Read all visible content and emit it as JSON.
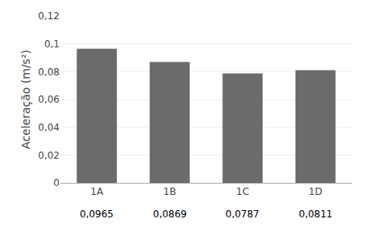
{
  "chart_data": {
    "type": "bar",
    "categories": [
      "1A",
      "1B",
      "1C",
      "1D"
    ],
    "values": [
      0.0965,
      0.0869,
      0.0787,
      0.0811
    ],
    "value_labels": [
      "0,0965",
      "0,0869",
      "0,0787",
      "0,0811"
    ],
    "color": "#6b6b6b",
    "ylabel": "Aceleração (m/s²)",
    "ylim": [
      0,
      0.12
    ],
    "yticks": [
      0,
      {
        "value": 0.02,
        "label": "0,02"
      },
      {
        "value": 0.04,
        "label": "0,04"
      },
      {
        "value": 0.06,
        "label": "0,06"
      },
      {
        "value": 0.08,
        "label": "0,08"
      },
      {
        "value": 0.1,
        "label": "0,1"
      },
      {
        "value": 0.12,
        "label": "0,12"
      }
    ],
    "grid": true
  }
}
